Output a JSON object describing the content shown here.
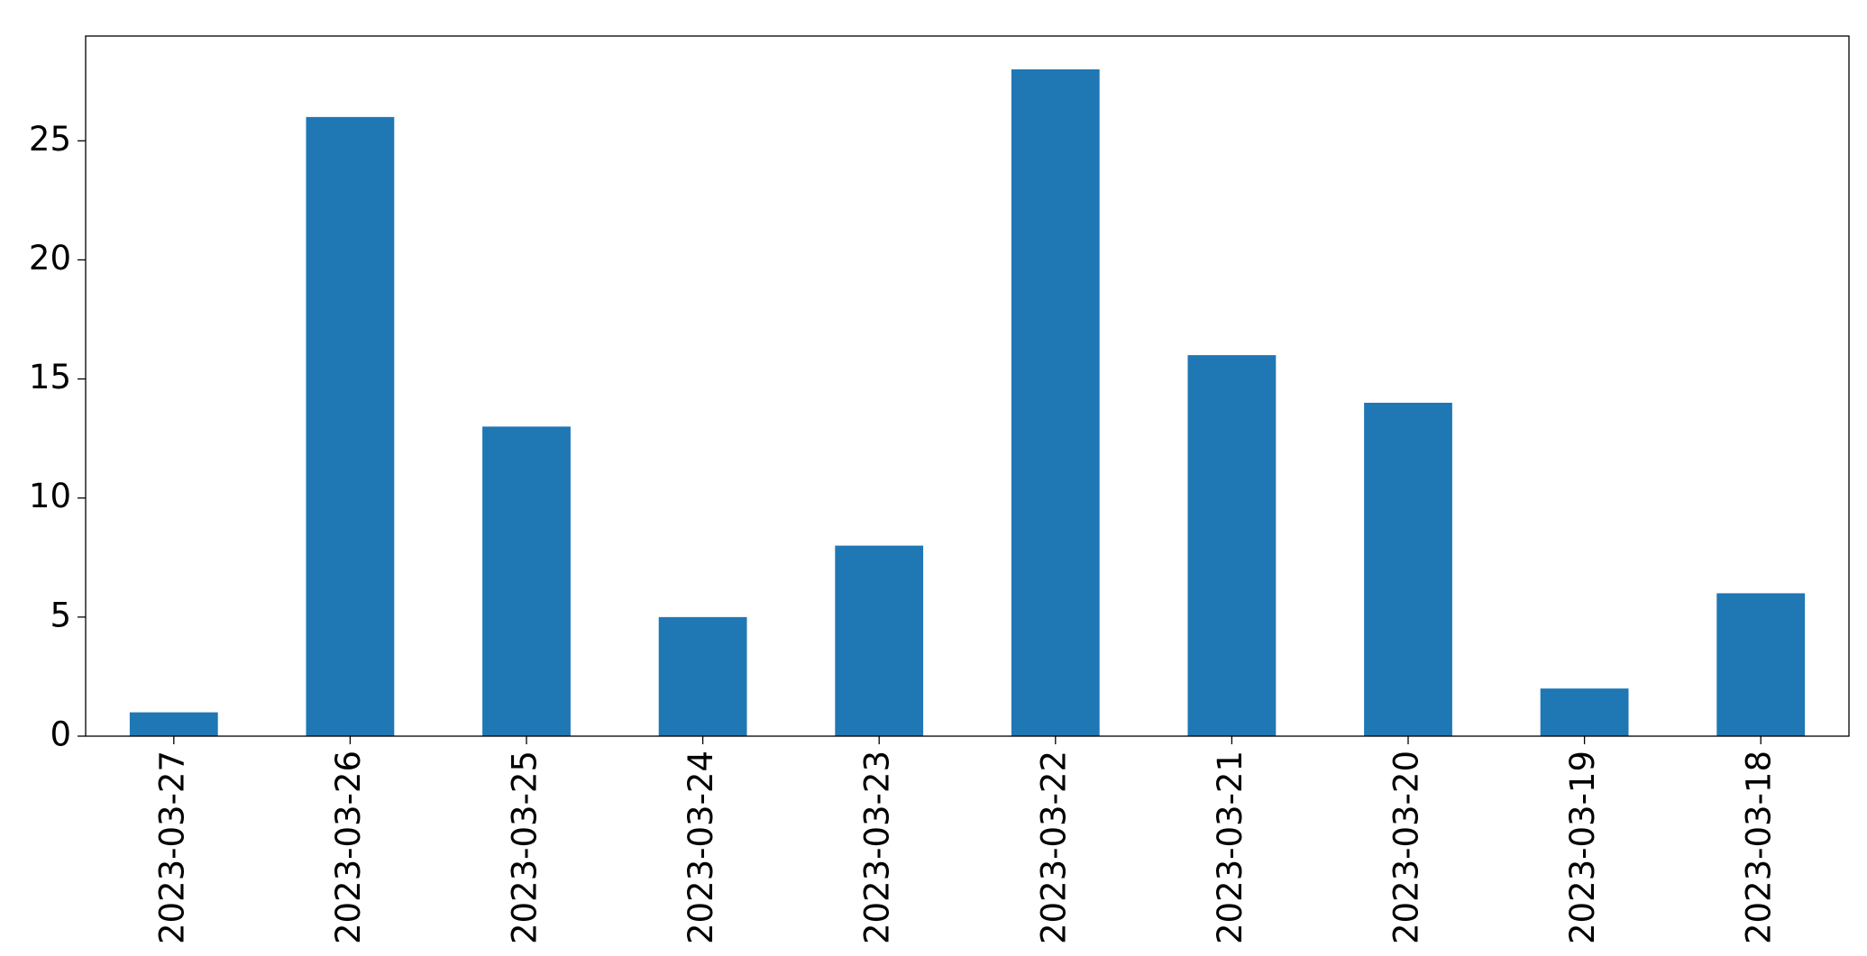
{
  "chart_data": {
    "type": "bar",
    "categories": [
      "2023-03-27",
      "2023-03-26",
      "2023-03-25",
      "2023-03-24",
      "2023-03-23",
      "2023-03-22",
      "2023-03-21",
      "2023-03-20",
      "2023-03-19",
      "2023-03-18"
    ],
    "values": [
      1,
      26,
      13,
      5,
      8,
      28,
      16,
      14,
      2,
      6
    ],
    "color": "#1f77b4",
    "ylim": [
      0,
      29.4
    ],
    "yticks": [
      0,
      5,
      10,
      15,
      20,
      25
    ],
    "grid": false
  }
}
